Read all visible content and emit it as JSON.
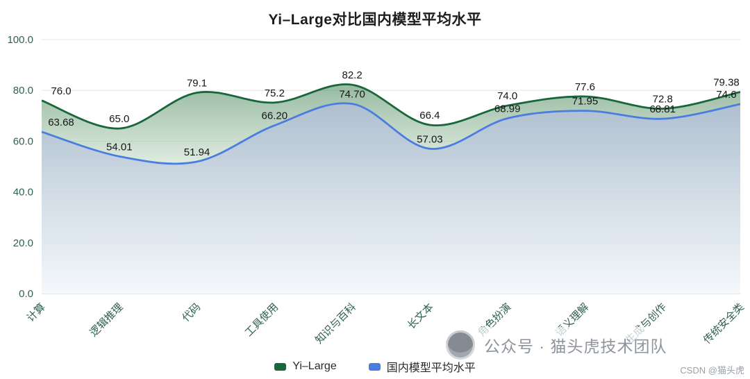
{
  "title": "Yi–Large对比国内模型平均水平",
  "chart_data": {
    "type": "area",
    "title": "Yi–Large对比国内模型平均水平",
    "smooth": true,
    "grid": true,
    "legend_position": "bottom",
    "categories": [
      "计算",
      "逻辑推理",
      "代码",
      "工具使用",
      "知识与百科",
      "长文本",
      "角色扮演",
      "语义理解",
      "生成与创作",
      "传统安全类"
    ],
    "series": [
      {
        "name": "Yi–Large",
        "color": "#17673b",
        "values": [
          76.0,
          65.0,
          79.1,
          75.2,
          82.2,
          66.4,
          74.0,
          77.6,
          72.8,
          79.38
        ],
        "value_labels": [
          "76.0",
          "65.0",
          "79.1",
          "75.2",
          "82.2",
          "66.4",
          "74.0",
          "77.6",
          "72.8",
          "79.38"
        ]
      },
      {
        "name": "国内模型平均水平",
        "color": "#4a7de0",
        "values": [
          63.68,
          54.01,
          51.94,
          66.2,
          74.7,
          57.03,
          68.99,
          71.95,
          68.81,
          74.6
        ],
        "value_labels": [
          "63.68",
          "54.01",
          "51.94",
          "66.20",
          "74.70",
          "57.03",
          "68.99",
          "71.95",
          "68.81",
          "74.6"
        ]
      }
    ],
    "ylim": [
      0,
      100
    ],
    "ytick_values": [
      100,
      80,
      60,
      40,
      20,
      0
    ],
    "ytick_labels": [
      "100.0",
      "80.0",
      "60.0",
      "40.0",
      "20.0",
      "0.0"
    ]
  },
  "legend": {
    "items": [
      {
        "label": "Yi–Large",
        "color": "#17673b"
      },
      {
        "label": "国内模型平均水平",
        "color": "#4a7de0"
      }
    ]
  },
  "watermark": {
    "text": "公众号 · 猫头虎技术团队"
  },
  "credit": {
    "text": "CSDN @猫头虎"
  },
  "colors": {
    "axis_label": "#2e5f54",
    "data_label": "#161616",
    "grid_line": "#e6e6e6",
    "axis_line": "#cfcfcf"
  }
}
